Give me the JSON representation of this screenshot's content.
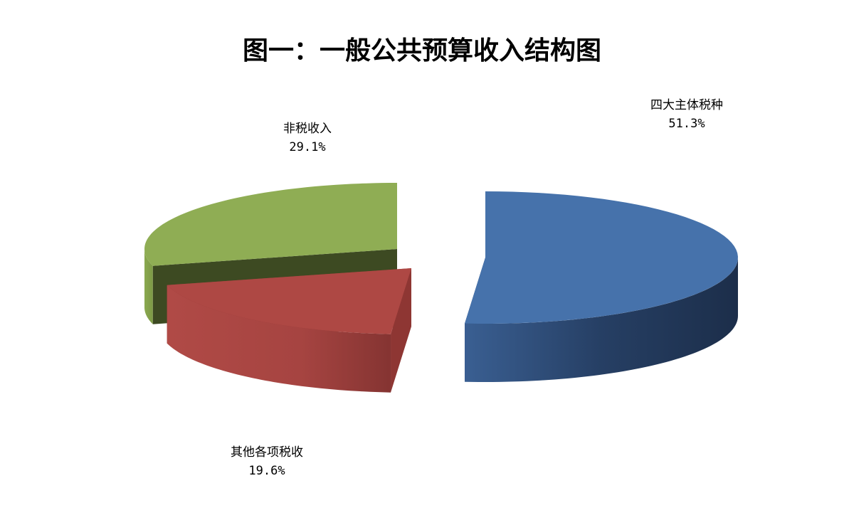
{
  "chart_data": {
    "type": "pie",
    "style": "3d-exploded",
    "title": "图一：一般公共预算收入结构图",
    "slices": [
      {
        "label": "四大主体税种",
        "value": 51.3,
        "value_label": "51.3%",
        "color": "#4672AB"
      },
      {
        "label": "其他各项税收",
        "value": 19.6,
        "value_label": "19.6%",
        "color": "#AE4844"
      },
      {
        "label": "非税收入",
        "value": 29.1,
        "value_label": "29.1%",
        "color": "#8FAD54"
      }
    ],
    "legend": "none"
  }
}
